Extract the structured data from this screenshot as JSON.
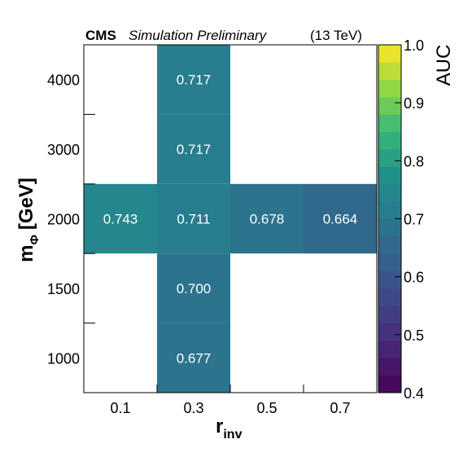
{
  "header": {
    "experiment": "CMS",
    "label": "Simulation Preliminary",
    "energy": "(13 TeV)"
  },
  "chart_data": {
    "type": "heatmap",
    "xlabel": "r",
    "xlabel_sub": "inv",
    "ylabel": "m",
    "ylabel_sub": "Φ",
    "ylabel_unit": "[GeV]",
    "x_categories": [
      "0.1",
      "0.3",
      "0.5",
      "0.7"
    ],
    "y_categories": [
      "1000",
      "1500",
      "2000",
      "3000",
      "4000"
    ],
    "cells": [
      {
        "x": "0.1",
        "y": "2000",
        "value": 0.743,
        "label": "0.743"
      },
      {
        "x": "0.3",
        "y": "2000",
        "value": 0.711,
        "label": "0.711"
      },
      {
        "x": "0.5",
        "y": "2000",
        "value": 0.678,
        "label": "0.678"
      },
      {
        "x": "0.7",
        "y": "2000",
        "value": 0.664,
        "label": "0.664"
      },
      {
        "x": "0.3",
        "y": "1000",
        "value": 0.677,
        "label": "0.677"
      },
      {
        "x": "0.3",
        "y": "1500",
        "value": 0.7,
        "label": "0.700"
      },
      {
        "x": "0.3",
        "y": "3000",
        "value": 0.717,
        "label": "0.717"
      },
      {
        "x": "0.3",
        "y": "4000",
        "value": 0.717,
        "label": "0.717"
      }
    ],
    "colorbar": {
      "label": "AUC",
      "range": [
        0.4,
        1.0
      ],
      "ticks": [
        "0.4",
        "0.5",
        "0.6",
        "0.7",
        "0.8",
        "0.9",
        "1.0"
      ],
      "palette": "viridis"
    },
    "grid": false
  }
}
